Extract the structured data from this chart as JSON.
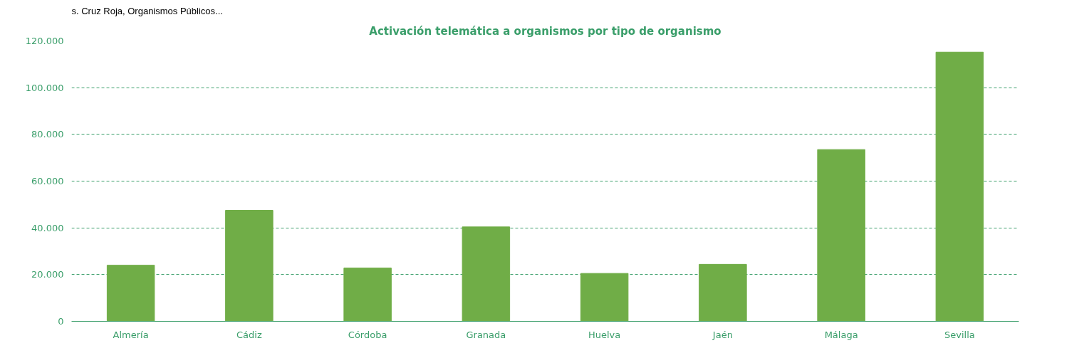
{
  "chart_data": {
    "type": "bar",
    "title": "Activación telemática a organismos por tipo de organismo",
    "annotations": [
      "s. Cruz Roja, Organismos Públicos..."
    ],
    "categories": [
      "Almería",
      "Cádiz",
      "Córdoba",
      "Granada",
      "Huelva",
      "Jaén",
      "Málaga",
      "Sevilla"
    ],
    "series": [
      {
        "color": "#70ad47",
        "values": [
          24000,
          47500,
          22800,
          40400,
          20500,
          24400,
          73500,
          115200
        ]
      }
    ],
    "ylim": [
      0,
      120000
    ],
    "yticks": [
      0,
      {
        "value": 20000,
        "label": "20.000"
      },
      {
        "value": 40000,
        "label": "40.000"
      },
      {
        "value": 60000,
        "label": "60.000"
      },
      {
        "value": 80000,
        "label": "80.000"
      },
      {
        "value": 100000,
        "label": "100.000"
      },
      {
        "value": 120000,
        "label": "120.000"
      }
    ],
    "grid": "y"
  }
}
